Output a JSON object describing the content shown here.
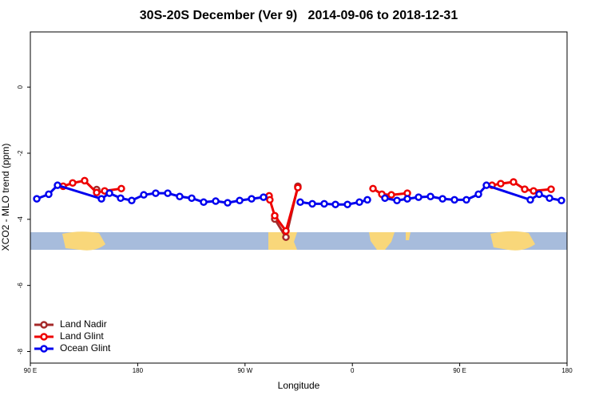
{
  "chart_data": {
    "type": "line",
    "title": "30S-20S December (Ver 9)   2014-09-06 to 2018-12-31",
    "x_label": "Longitude",
    "y_label": "XCO2 - MLO trend (ppm)",
    "xlim": [
      90,
      540
    ],
    "xticks": [
      {
        "value": 90,
        "label": "90 E"
      },
      {
        "value": 180,
        "label": "180"
      },
      {
        "value": 270,
        "label": "90 W"
      },
      {
        "value": 360,
        "label": "0"
      },
      {
        "value": 450,
        "label": "90 E"
      },
      {
        "value": 540,
        "label": "180"
      }
    ],
    "ylim": [
      -8.35,
      1.67
    ],
    "yticks": [
      0,
      -2,
      -4,
      -6,
      -8
    ],
    "legend": "bottom-left",
    "series": [
      {
        "name": "Land Nadir",
        "color": "#a52a2a",
        "x": [
          145.6,
          null,
          294.9,
          304.3,
          314.3
        ],
        "values": [
          -3.1,
          null,
          -3.99,
          -4.54,
          -3.0
        ]
      },
      {
        "name": "Land Glint",
        "color": "#ee0000",
        "x": [
          117.5,
          125.5,
          135.5,
          145.6,
          152.3,
          166.3,
          null,
          290.2,
          290.8,
          294.9,
          304.3,
          314.3,
          null,
          377.3,
          384.7,
          392.7,
          406.1,
          null,
          477.1,
          484.4,
          495.1,
          504.5,
          511.9,
          526.6
        ],
        "values": [
          -3.0,
          -2.9,
          -2.83,
          -3.19,
          -3.14,
          -3.07,
          null,
          -3.29,
          -3.41,
          -3.89,
          -4.35,
          -3.04,
          null,
          -3.07,
          -3.24,
          -3.26,
          -3.21,
          null,
          -2.97,
          -2.92,
          -2.87,
          -3.09,
          -3.14,
          -3.09
        ]
      },
      {
        "name": "Ocean Glint",
        "color": "#0000ee",
        "x": [
          95.4,
          105.4,
          112.8,
          149.6,
          156.3,
          165.7,
          175.0,
          185.1,
          195.1,
          205.2,
          215.2,
          225.3,
          235.3,
          245.4,
          255.4,
          265.5,
          275.5,
          285.5,
          null,
          316.3,
          326.4,
          336.4,
          345.8,
          355.9,
          365.9,
          372.6,
          null,
          387.3,
          397.4,
          406.1,
          415.5,
          425.5,
          435.6,
          445.6,
          455.6,
          465.7,
          472.4,
          509.2,
          516.6,
          525.3,
          535.3
        ],
        "values": [
          -3.38,
          -3.24,
          -2.97,
          -3.38,
          -3.21,
          -3.36,
          -3.43,
          -3.26,
          -3.21,
          -3.21,
          -3.31,
          -3.36,
          -3.48,
          -3.45,
          -3.5,
          -3.43,
          -3.38,
          -3.33,
          null,
          -3.48,
          -3.53,
          -3.53,
          -3.55,
          -3.55,
          -3.48,
          -3.41,
          null,
          -3.36,
          -3.43,
          -3.38,
          -3.33,
          -3.31,
          -3.38,
          -3.41,
          -3.41,
          -3.24,
          -2.97,
          -3.41,
          -3.24,
          -3.36,
          -3.43
        ]
      }
    ]
  }
}
